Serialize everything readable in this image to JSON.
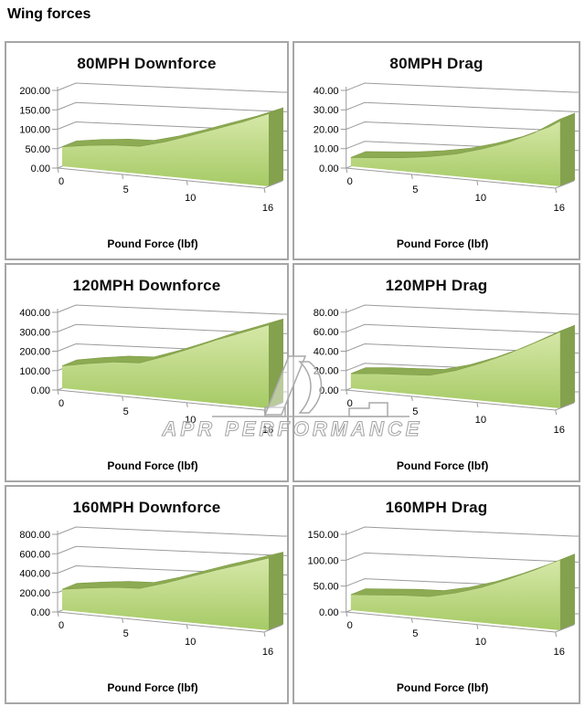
{
  "page_title": "Wing forces",
  "watermark": {
    "text": "APR PERFORMANCE"
  },
  "colors": {
    "area_top_band": "#8cab52",
    "area_top_band_edge": "#7e9a47",
    "area_face_top": "#d6e8a8",
    "area_face_bottom": "#a6ca65",
    "area_end_cap": "#84a14e",
    "gridline": "#9b9b9b",
    "panel_border": "#a6a6a6",
    "title_color": "#0d0d0d"
  },
  "chart_data": [
    {
      "type": "area",
      "title": "80MPH Downforce",
      "xlabel": "Pound Force (lbf)",
      "x": [
        0,
        2,
        4,
        6,
        8,
        10,
        12,
        14,
        16
      ],
      "values": [
        50,
        58,
        63,
        64,
        78,
        95,
        112,
        128,
        146
      ],
      "ylim": [
        0,
        200
      ],
      "y_tick_labels": [
        "0.00",
        "50.00",
        "100.00",
        "150.00",
        "200.00"
      ],
      "x_tick_positions": [
        0,
        5,
        10,
        16
      ],
      "x_tick_labels": [
        "0",
        "5",
        "10",
        "16"
      ],
      "xmax": 16
    },
    {
      "type": "area",
      "title": "80MPH Drag",
      "xlabel": "Pound Force (lbf)",
      "x": [
        0,
        2,
        4,
        6,
        8,
        10,
        12,
        14,
        16
      ],
      "values": [
        4.5,
        5.5,
        6.5,
        8,
        10,
        13,
        16.5,
        21,
        27
      ],
      "ylim": [
        0,
        40
      ],
      "y_tick_labels": [
        "0.00",
        "10.00",
        "20.00",
        "30.00",
        "40.00"
      ],
      "x_tick_positions": [
        0,
        5,
        10,
        16
      ],
      "x_tick_labels": [
        "0",
        "5",
        "10",
        "16"
      ],
      "xmax": 16
    },
    {
      "type": "area",
      "title": "120MPH Downforce",
      "xlabel": "Pound Force (lbf)",
      "x": [
        0,
        2,
        4,
        6,
        8,
        10,
        12,
        14,
        16
      ],
      "values": [
        115,
        135,
        150,
        153,
        190,
        230,
        270,
        303,
        335
      ],
      "ylim": [
        0,
        400
      ],
      "y_tick_labels": [
        "0.00",
        "100.00",
        "200.00",
        "300.00",
        "400.00"
      ],
      "x_tick_positions": [
        0,
        5,
        10,
        16
      ],
      "x_tick_labels": [
        "0",
        "5",
        "10",
        "16"
      ],
      "xmax": 16
    },
    {
      "type": "area",
      "title": "120MPH Drag",
      "xlabel": "Pound Force (lbf)",
      "x": [
        0,
        2,
        4,
        6,
        8,
        10,
        12,
        14,
        16
      ],
      "values": [
        15,
        17,
        18,
        19,
        25,
        33,
        42,
        52,
        62
      ],
      "ylim": [
        0,
        80
      ],
      "y_tick_labels": [
        "0.00",
        "20.00",
        "40.00",
        "60.00",
        "80.00"
      ],
      "x_tick_positions": [
        0,
        5,
        10,
        16
      ],
      "x_tick_labels": [
        "0",
        "5",
        "10",
        "16"
      ],
      "xmax": 16
    },
    {
      "type": "area",
      "title": "160MPH Downforce",
      "xlabel": "Pound Force (lbf)",
      "x": [
        0,
        2,
        4,
        6,
        8,
        10,
        12,
        14,
        16
      ],
      "values": [
        215,
        245,
        268,
        273,
        335,
        405,
        470,
        525,
        580
      ],
      "ylim": [
        0,
        800
      ],
      "y_tick_labels": [
        "0.00",
        "200.00",
        "400.00",
        "600.00",
        "800.00"
      ],
      "x_tick_positions": [
        0,
        5,
        10,
        16
      ],
      "x_tick_labels": [
        "0",
        "5",
        "10",
        "16"
      ],
      "xmax": 16
    },
    {
      "type": "area",
      "title": "160MPH Drag",
      "xlabel": "Pound Force (lbf)",
      "x": [
        0,
        2,
        4,
        6,
        8,
        10,
        12,
        14,
        16
      ],
      "values": [
        30,
        33,
        36,
        37,
        46,
        58,
        73,
        89,
        106
      ],
      "ylim": [
        0,
        150
      ],
      "y_tick_labels": [
        "0.00",
        "50.00",
        "100.00",
        "150.00"
      ],
      "x_tick_positions": [
        0,
        5,
        10,
        16
      ],
      "x_tick_labels": [
        "0",
        "5",
        "10",
        "16"
      ],
      "xmax": 16
    }
  ]
}
